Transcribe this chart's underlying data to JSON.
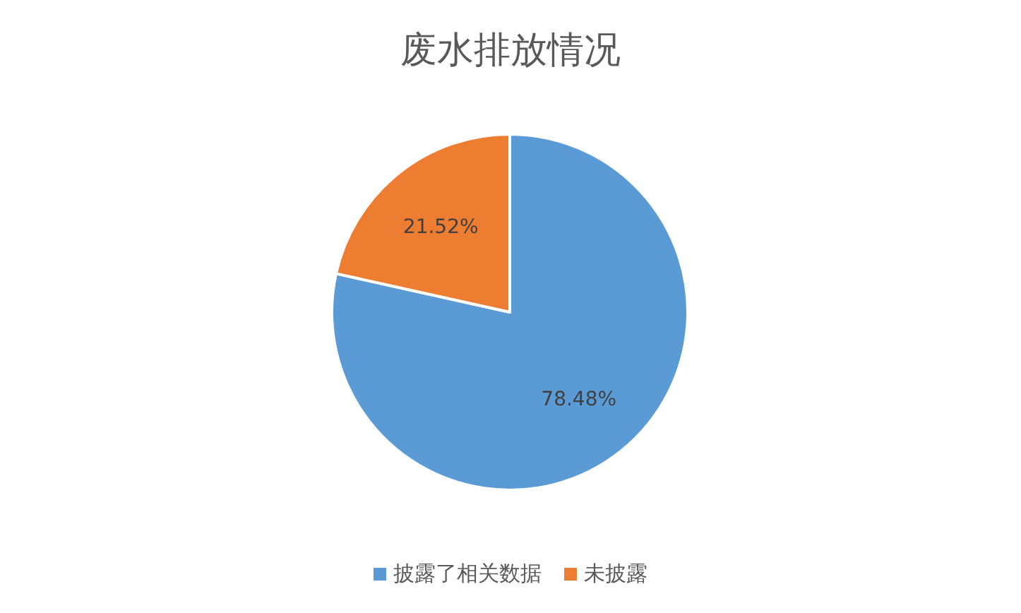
{
  "chart_data": {
    "type": "pie",
    "title": "废水排放情况",
    "categories": [
      "披露了相关数据",
      "未披露"
    ],
    "values": [
      78.48,
      21.52
    ],
    "value_labels": [
      "78.48%",
      "21.52%"
    ],
    "colors": [
      "#5b9bd5",
      "#ed7d31"
    ],
    "legend": "bottom"
  }
}
